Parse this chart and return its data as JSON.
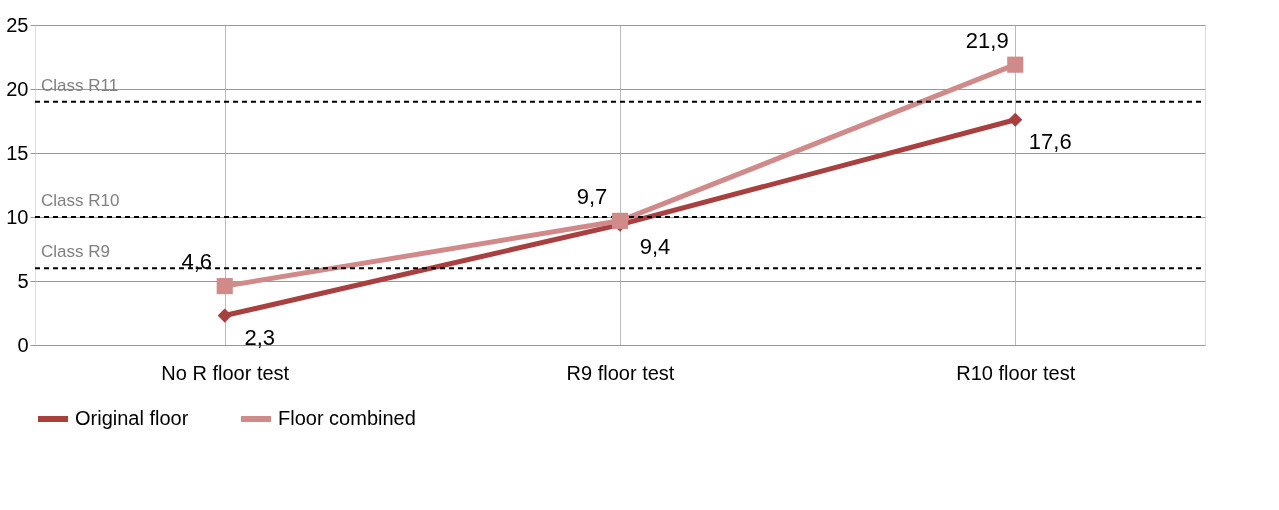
{
  "chart_data": {
    "type": "line",
    "categories": [
      "No R floor test",
      "R9 floor test",
      "R10 floor test"
    ],
    "series": [
      {
        "name": "Original floor",
        "color": "#a8403f",
        "marker": "diamond",
        "values": [
          2.3,
          9.4,
          17.6
        ],
        "value_labels": [
          "2,3",
          "9,4",
          "17,6"
        ]
      },
      {
        "name": "Floor combined",
        "color": "#cf8a89",
        "marker": "square",
        "values": [
          4.6,
          9.7,
          21.9
        ],
        "value_labels": [
          "4,6",
          "9,7",
          "21,9"
        ]
      }
    ],
    "ylim": [
      0,
      25
    ],
    "yticks": [
      0,
      5,
      10,
      15,
      20,
      25
    ],
    "ref_lines": [
      {
        "axis": "y",
        "value": 19,
        "label": "Class R11",
        "color": "#000000",
        "line_style": "dashed"
      },
      {
        "axis": "y",
        "value": 10,
        "label": "Class R10",
        "color": "#000000",
        "line_style": "dashed"
      },
      {
        "axis": "y",
        "value": 6,
        "label": "Class R9",
        "color": "#000000",
        "line_style": "dashed"
      }
    ],
    "grid": true,
    "legend": "bottom",
    "line_style": "solid"
  }
}
